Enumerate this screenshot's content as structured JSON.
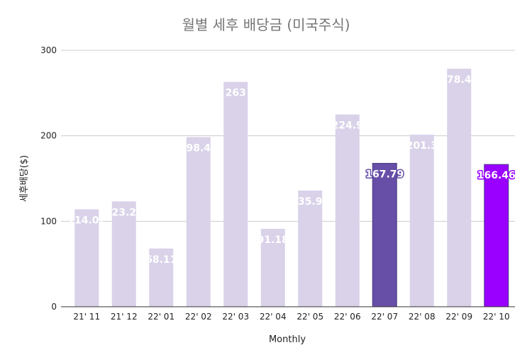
{
  "chart_data": {
    "type": "bar",
    "title": "월별 세후 배당금 (미국주식)",
    "xlabel": "Monthly",
    "ylabel": "세후배당($)",
    "ylim": [
      0,
      300
    ],
    "yticks": [
      0,
      100,
      200,
      300
    ],
    "grid": true,
    "legend": "none",
    "categories": [
      "21' 11",
      "21' 12",
      "22' 01",
      "22' 02",
      "22' 03",
      "22' 04",
      "22' 05",
      "22' 06",
      "22' 07",
      "22' 08",
      "22' 09",
      "22' 10"
    ],
    "values": [
      114.02,
      123.22,
      68.11,
      198.45,
      263,
      91.18,
      135.94,
      224.9,
      167.79,
      201.3,
      278.46,
      166.46
    ],
    "data_labels": [
      "114.02",
      "123.22",
      "68.11",
      "198.45",
      "263",
      "91.18",
      "135.94",
      "224.9",
      "167.79",
      "201.3",
      "278.46",
      "166.46"
    ],
    "colors": [
      "#d9d2e9",
      "#d9d2e9",
      "#d9d2e9",
      "#d9d2e9",
      "#d9d2e9",
      "#d9d2e9",
      "#d9d2e9",
      "#d9d2e9",
      "#674ea7",
      "#d9d2e9",
      "#d9d2e9",
      "#9900ff"
    ]
  }
}
